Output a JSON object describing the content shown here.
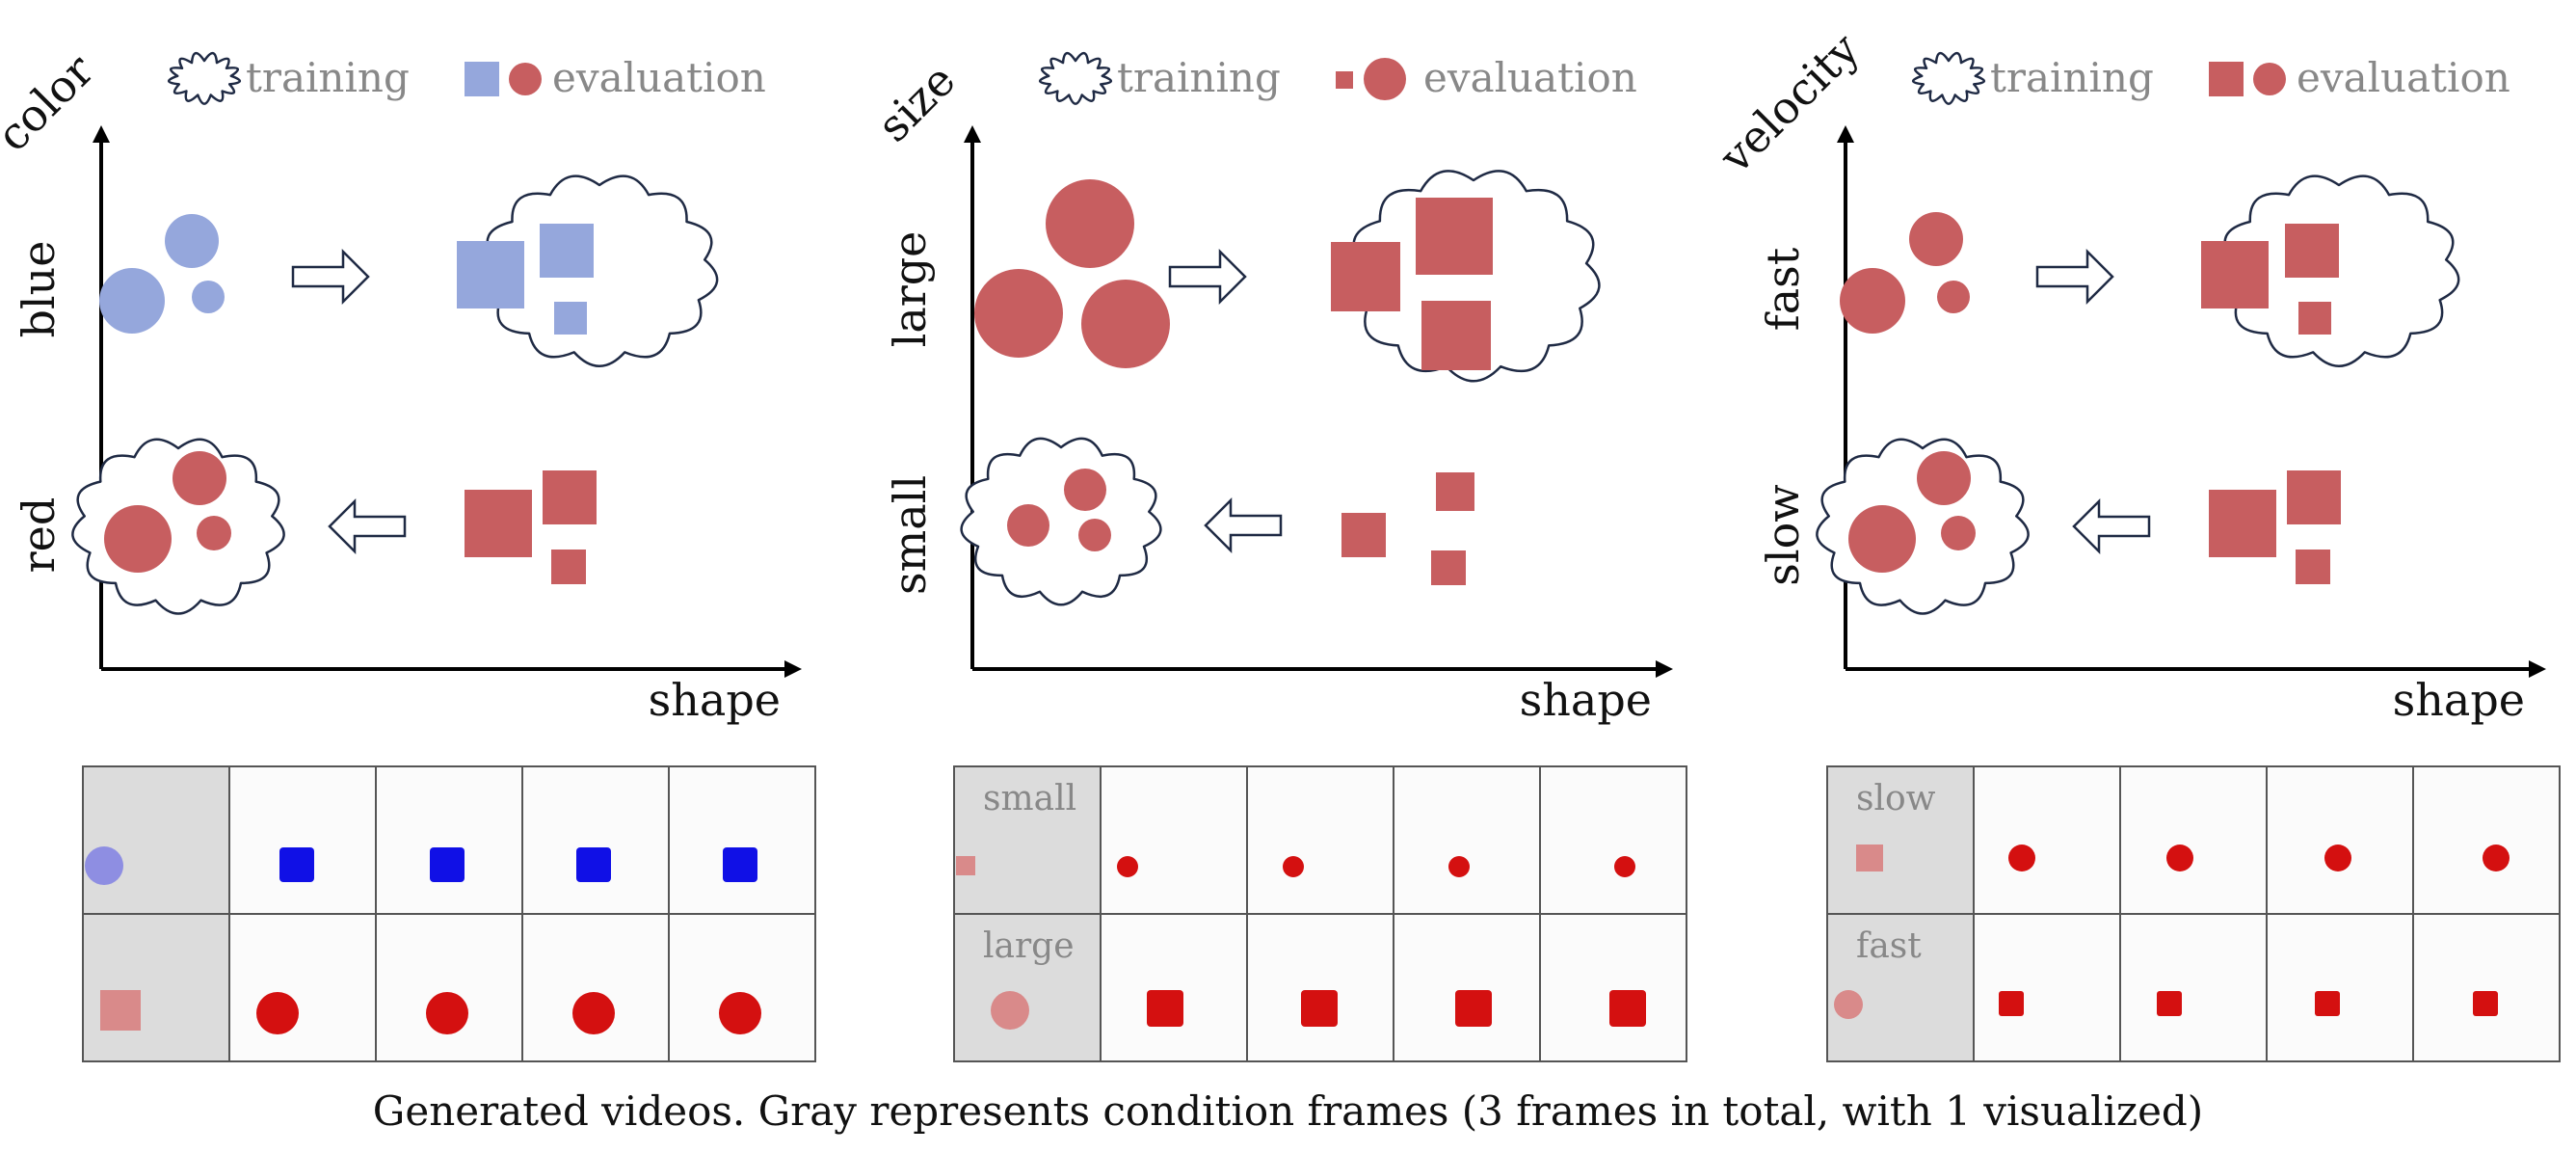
{
  "colors": {
    "blue": "#95a7dc",
    "red": "#c75e60",
    "legend_text": "#888888",
    "axis": "#000000",
    "cloud_stroke": "#1f2a44",
    "arrow_stroke": "#1f2a44",
    "frame_gray": "#dcdcdc",
    "frame_white": "#fbfbfb",
    "gen_blue": "#1010e6",
    "gen_red": "#d41010",
    "cond_blue": "#8e8ee2",
    "cond_red": "#d98a8a"
  },
  "panels": [
    {
      "id": "color",
      "y_axis_label": "color",
      "x_axis_label": "shape",
      "top_row_label": "blue",
      "bottom_row_label": "red",
      "legend": {
        "training": "training",
        "evaluation": "evaluation"
      },
      "grid": {
        "top_label": "",
        "bottom_label": ""
      }
    },
    {
      "id": "size",
      "y_axis_label": "size",
      "x_axis_label": "shape",
      "top_row_label": "large",
      "bottom_row_label": "small",
      "legend": {
        "training": "training",
        "evaluation": "evaluation"
      },
      "grid": {
        "top_label": "small",
        "bottom_label": "large"
      }
    },
    {
      "id": "velocity",
      "y_axis_label": "velocity",
      "x_axis_label": "shape",
      "top_row_label": "fast",
      "bottom_row_label": "slow",
      "legend": {
        "training": "training",
        "evaluation": "evaluation"
      },
      "grid": {
        "top_label": "slow",
        "bottom_label": "fast"
      }
    }
  ],
  "caption": "Generated videos. Gray represents condition frames (3 frames in total, with 1 visualized)"
}
